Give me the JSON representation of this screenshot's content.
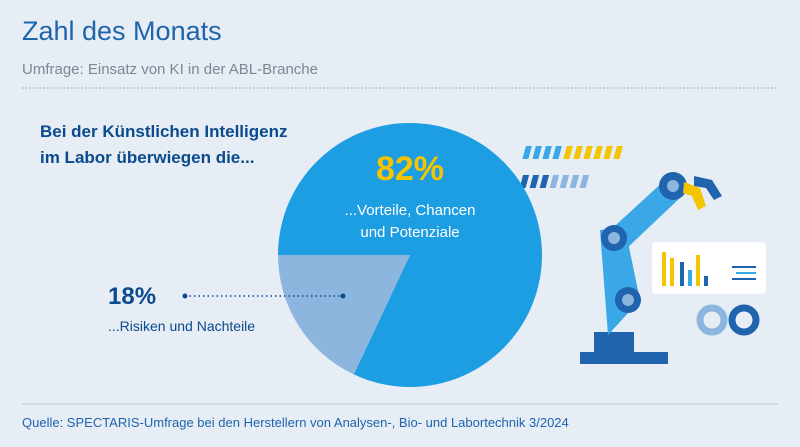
{
  "chart_data": {
    "type": "pie",
    "title": "Zahl des Monats",
    "subtitle": "Umfrage: Einsatz von KI in der ABL-Branche",
    "heading": [
      "Bei der Künstlichen Intelligenz",
      "im Labor überwiegen die..."
    ],
    "categories": [
      "...Vorteile, Chancen und Potenziale",
      "...Risiken und Nachteile"
    ],
    "values": [
      82,
      18
    ],
    "value_labels": [
      "82%",
      "18%"
    ],
    "colors": [
      "#1d9de2",
      "#8db6df"
    ],
    "source": "Quelle: SPECTARIS-Umfrage bei den Herstellern von Analysen-, Bio- und Labortechnik 3/2024"
  }
}
